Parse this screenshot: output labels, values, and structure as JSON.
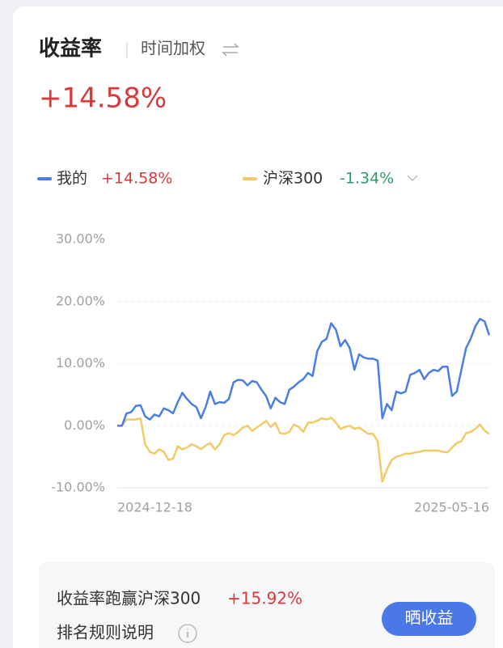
{
  "header": {
    "title": "收益率",
    "mode": "时间加权",
    "headline": "+14.58%"
  },
  "chart_data": {
    "type": "line",
    "categories": [
      "2024-12-18",
      null,
      null,
      null,
      null,
      null,
      null,
      null,
      null,
      null,
      null,
      null,
      null,
      null,
      null,
      null,
      null,
      null,
      null,
      null,
      null,
      null,
      null,
      null,
      null,
      null,
      null,
      null,
      null,
      null,
      null,
      null,
      null,
      null,
      null,
      null,
      null,
      null,
      null,
      null,
      null,
      null,
      null,
      null,
      null,
      null,
      null,
      null,
      null,
      null,
      null,
      null,
      null,
      null,
      null,
      null,
      null,
      null,
      null,
      null,
      null,
      null,
      null,
      null,
      null,
      null,
      null,
      null,
      null,
      null,
      null,
      null,
      null,
      null,
      null,
      null,
      null,
      null,
      null,
      null,
      "2025-05-16"
    ],
    "series": [
      {
        "name": "我的",
        "summary": "+14.58%",
        "color": "#4a7ee6",
        "values": [
          0,
          0,
          2,
          2.2,
          3.2,
          3.3,
          1.5,
          1.0,
          1.8,
          1.5,
          2.8,
          2.5,
          2.0,
          3.8,
          5.3,
          4.3,
          3.5,
          3.0,
          1.2,
          3.0,
          5.5,
          3.5,
          3.8,
          3.7,
          4.3,
          7.0,
          7.4,
          7.3,
          6.5,
          7.2,
          7.0,
          5.8,
          4.8,
          2.8,
          4.5,
          3.8,
          3.5,
          5.8,
          6.3,
          7.0,
          7.5,
          8.5,
          8.0,
          12.0,
          13.5,
          14.0,
          16.5,
          15.5,
          12.8,
          13.8,
          12.5,
          9.0,
          11.5,
          11.0,
          10.8,
          10.8,
          10.5,
          1.2,
          3.5,
          2.5,
          5.5,
          5.2,
          5.5,
          8.2,
          8.5,
          9.0,
          7.5,
          8.5,
          9.0,
          8.8,
          9.5,
          9.5,
          4.8,
          5.5,
          9.0,
          12.5,
          14.0,
          16.0,
          17.2,
          16.8,
          14.58
        ]
      },
      {
        "name": "沪深300",
        "summary": "-1.34%",
        "color": "#f2cb68",
        "values": [
          0,
          0,
          1.0,
          1.0,
          1.0,
          1.2,
          -3.0,
          -4.2,
          -4.5,
          -3.8,
          -4.2,
          -5.5,
          -5.3,
          -3.3,
          -3.8,
          -3.5,
          -3.0,
          -3.3,
          -3.8,
          -3.2,
          -2.8,
          -3.8,
          -3.0,
          -1.5,
          -1.2,
          -1.5,
          -1.0,
          -0.3,
          0,
          -0.8,
          -0.3,
          0.2,
          0.8,
          -0.2,
          0.5,
          -1.2,
          -1.3,
          -1.0,
          0.2,
          -0.2,
          -1.0,
          0.5,
          0.5,
          0.8,
          1.2,
          1.0,
          1.3,
          0.5,
          -0.5,
          -0.2,
          0,
          -0.5,
          -0.3,
          -0.8,
          -1.3,
          -1.3,
          -2.5,
          -9.0,
          -7.0,
          -5.5,
          -5.0,
          -4.8,
          -4.5,
          -4.5,
          -4.3,
          -4.2,
          -4.0,
          -4.0,
          -4.0,
          -4.0,
          -4.2,
          -4.3,
          -3.5,
          -2.8,
          -2.5,
          -1.2,
          -1.0,
          -0.5,
          0.2,
          -0.8,
          -1.34
        ]
      }
    ],
    "ylim": [
      -10,
      30
    ],
    "yticks": [
      {
        "value": -10,
        "label": "-10.00%"
      },
      {
        "value": 0,
        "label": "0.00%"
      },
      {
        "value": 10,
        "label": "10.00%"
      },
      {
        "value": 20,
        "label": "20.00%"
      },
      {
        "value": 30,
        "label": "30.00%"
      }
    ],
    "grid": true
  },
  "footer": {
    "compare": "收益率跑赢沪深300",
    "compare_value": "+15.92%",
    "rules": "排名规则说明",
    "button": "晒收益"
  }
}
